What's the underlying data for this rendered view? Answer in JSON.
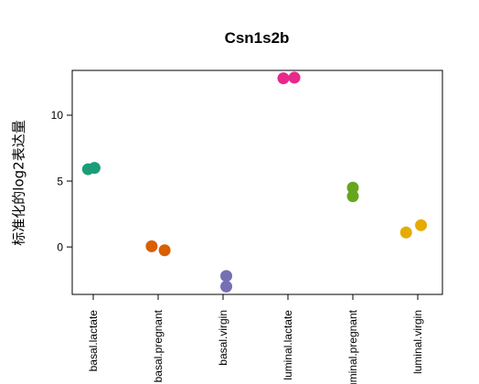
{
  "chart_data": {
    "type": "scatter",
    "title": "Csn1s2b",
    "xlabel": "",
    "ylabel": "标准化的log2表达量",
    "ylim": [
      -3.6,
      13.4
    ],
    "yticks": [
      0,
      5,
      10
    ],
    "grid": false,
    "categories": [
      "basal.lactate",
      "basal.pregnant",
      "basal.virgin",
      "luminal.lactate",
      "luminal.pregnant",
      "luminal.virgin"
    ],
    "category_labels": [
      "basal.lactate",
      "basal.pregnant",
      "basal.virgin",
      "luminal.lactate",
      "luminal.pregnant",
      "luminal.virgin"
    ],
    "series": [
      {
        "category": "basal.lactate",
        "color": "#1b9e77",
        "points": [
          {
            "dx": -0.08,
            "y": 5.9
          },
          {
            "dx": 0.02,
            "y": 6.0
          }
        ]
      },
      {
        "category": "basal.pregnant",
        "color": "#d95f02",
        "points": [
          {
            "dx": -0.1,
            "y": 0.05
          },
          {
            "dx": 0.1,
            "y": -0.25
          }
        ]
      },
      {
        "category": "basal.virgin",
        "color": "#7570b3",
        "points": [
          {
            "dx": 0.05,
            "y": -2.2
          },
          {
            "dx": 0.05,
            "y": -3.0
          }
        ]
      },
      {
        "category": "luminal.lactate",
        "color": "#e7298a",
        "points": [
          {
            "dx": -0.07,
            "y": 12.8
          },
          {
            "dx": 0.1,
            "y": 12.85
          }
        ]
      },
      {
        "category": "luminal.pregnant",
        "color": "#66a61e",
        "points": [
          {
            "dx": 0.0,
            "y": 4.5
          },
          {
            "dx": 0.0,
            "y": 3.85
          }
        ]
      },
      {
        "category": "luminal.virgin",
        "color": "#e6ab02",
        "points": [
          {
            "dx": -0.18,
            "y": 1.1
          },
          {
            "dx": 0.05,
            "y": 1.65
          }
        ]
      }
    ]
  }
}
